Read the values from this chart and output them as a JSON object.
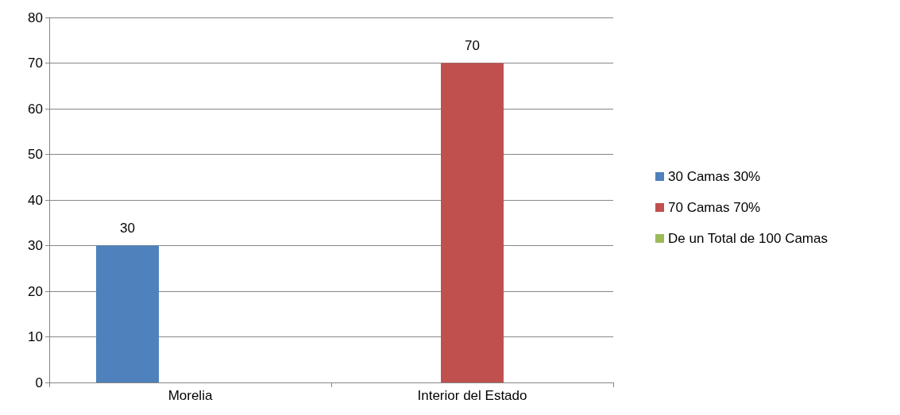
{
  "chart_data": {
    "type": "bar",
    "categories": [
      "Morelia",
      "Interior del Estado"
    ],
    "series": [
      {
        "name": "30 Camas 30%",
        "color": "#4f81bd",
        "values": [
          30,
          null
        ]
      },
      {
        "name": "70 Camas 70%",
        "color": "#c0504d",
        "values": [
          null,
          70
        ]
      },
      {
        "name": "De un Total de 100 Camas",
        "color": "#9bbb59",
        "values": [
          null,
          null
        ]
      }
    ],
    "ylim": [
      0,
      80
    ],
    "yticks": [
      0,
      10,
      20,
      30,
      40,
      50,
      60,
      70,
      80
    ],
    "grid": "y",
    "legend": "right",
    "data_labels": true
  }
}
